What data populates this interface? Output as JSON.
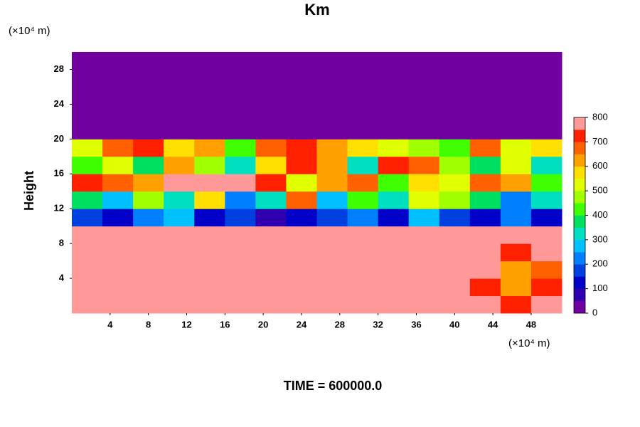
{
  "chart_data": {
    "type": "contour",
    "title": "Km",
    "x_unit": "(×10⁴ m)",
    "y_unit": "(×10⁴ m)",
    "y_label": "Height",
    "footer": "TIME = 600000.0",
    "xlim": [
      0,
      51.2
    ],
    "ylim": [
      0,
      30
    ],
    "xticks": [
      4,
      8,
      12,
      16,
      20,
      24,
      28,
      32,
      36,
      40,
      44,
      48
    ],
    "yticks": [
      4,
      8,
      12,
      16,
      20,
      24,
      28
    ],
    "x": [
      1.6,
      4.8,
      8,
      11.2,
      14.4,
      17.6,
      20.8,
      24,
      27.2,
      30.4,
      33.6,
      36.8,
      40,
      43.2,
      46.4,
      49.6
    ],
    "y": [
      1,
      3,
      5,
      7,
      9,
      11,
      13,
      15,
      17,
      19,
      21,
      23,
      25,
      27,
      29
    ],
    "z": [
      [
        800,
        800,
        800,
        800,
        800,
        800,
        800,
        800,
        800,
        800,
        800,
        800,
        800,
        800,
        700,
        800
      ],
      [
        800,
        800,
        800,
        800,
        800,
        800,
        800,
        800,
        800,
        800,
        800,
        800,
        800,
        700,
        600,
        700
      ],
      [
        800,
        800,
        800,
        800,
        800,
        800,
        800,
        800,
        800,
        800,
        800,
        800,
        800,
        750,
        600,
        650
      ],
      [
        800,
        800,
        800,
        800,
        800,
        800,
        800,
        800,
        800,
        800,
        800,
        800,
        800,
        800,
        700,
        750
      ],
      [
        800,
        800,
        800,
        800,
        800,
        800,
        800,
        800,
        800,
        800,
        800,
        800,
        800,
        800,
        800,
        800
      ],
      [
        150,
        100,
        200,
        250,
        100,
        150,
        50,
        100,
        150,
        200,
        100,
        250,
        150,
        100,
        200,
        100
      ],
      [
        350,
        250,
        450,
        300,
        550,
        200,
        300,
        650,
        250,
        400,
        300,
        500,
        450,
        350,
        200,
        300
      ],
      [
        700,
        650,
        600,
        750,
        800,
        800,
        700,
        500,
        600,
        650,
        400,
        550,
        500,
        650,
        600,
        400
      ],
      [
        400,
        500,
        350,
        600,
        450,
        300,
        550,
        700,
        600,
        300,
        700,
        650,
        450,
        350,
        500,
        300
      ],
      [
        500,
        650,
        700,
        550,
        600,
        400,
        650,
        700,
        600,
        550,
        500,
        450,
        400,
        650,
        500,
        550
      ],
      [
        0,
        0,
        0,
        0,
        0,
        0,
        0,
        0,
        0,
        0,
        0,
        0,
        0,
        0,
        0,
        0
      ],
      [
        0,
        0,
        0,
        0,
        0,
        0,
        0,
        0,
        0,
        0,
        0,
        0,
        0,
        0,
        0,
        0
      ],
      [
        0,
        0,
        0,
        0,
        0,
        0,
        0,
        0,
        0,
        0,
        0,
        0,
        0,
        0,
        0,
        0
      ],
      [
        0,
        0,
        0,
        0,
        0,
        0,
        0,
        0,
        0,
        0,
        0,
        0,
        0,
        0,
        0,
        0
      ],
      [
        0,
        0,
        0,
        0,
        0,
        0,
        0,
        0,
        0,
        0,
        0,
        0,
        0,
        0,
        0,
        0
      ]
    ],
    "levels": [
      0,
      50,
      100,
      150,
      200,
      250,
      300,
      350,
      400,
      450,
      500,
      550,
      600,
      650,
      700,
      750,
      800
    ],
    "colors": [
      "#7000a0",
      "#3000b0",
      "#0000c8",
      "#0040e0",
      "#0080ff",
      "#00c0ff",
      "#00e0c0",
      "#00e060",
      "#40ff00",
      "#a0ff00",
      "#e0ff00",
      "#ffe000",
      "#ffa000",
      "#ff6000",
      "#ff2000",
      "#ff9999"
    ],
    "colorbar_ticks": [
      0,
      100,
      200,
      300,
      400,
      500,
      600,
      700,
      800
    ]
  }
}
